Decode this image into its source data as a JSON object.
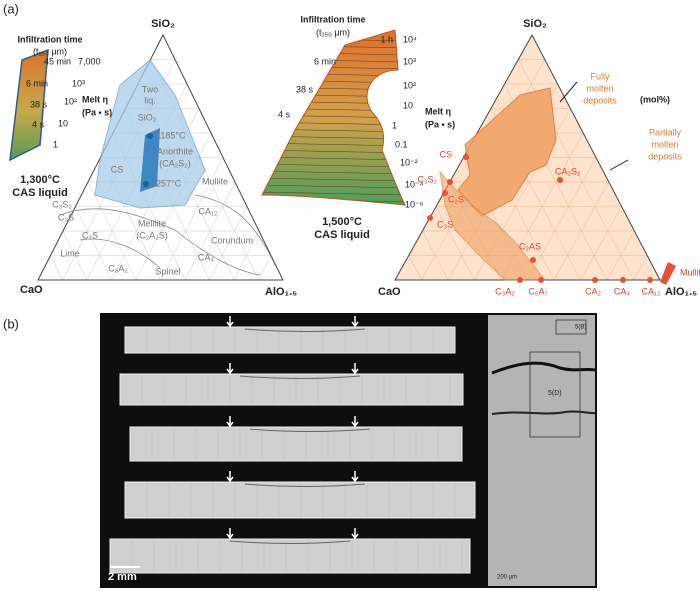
{
  "panel_a": {
    "label": "(a)",
    "left_diagram": {
      "apex": "SiO₂",
      "left_corner": "CaO",
      "right_corner": "AlO₁.₅",
      "inset": {
        "title": "Infiltration time",
        "subtitle": "(t₁₅₀ μm)",
        "times": [
          "45 min",
          "6 min",
          "38 s",
          "4 s"
        ],
        "viscosities": [
          "7,000",
          "10³",
          "10²",
          "10",
          "1"
        ],
        "viscosity_label": "Melt η",
        "viscosity_unit": "(Pa • s)",
        "temperature": "1,300°C",
        "liquid": "CAS liquid"
      },
      "phases": [
        "Two",
        "liq.",
        "SiO₂",
        "1185°C",
        "Anorthite",
        "(CA₂S₂)",
        "CS",
        "1257°C",
        "Mullite",
        "C₃S₂",
        "C₃S",
        "C₂S",
        "Melilite",
        "(C₂A₂S)",
        "CA₁₂",
        "Corundum",
        "CA₄",
        "Lime",
        "C₃A₂",
        "Spinel"
      ]
    },
    "middle_inset": {
      "title": "Infiltration time",
      "subtitle": "(t₁₅₀ μm)",
      "times": [
        "1 h",
        "6 min",
        "38 s",
        "4 s"
      ],
      "viscosities": [
        "10⁴",
        "10³",
        "10²",
        "10",
        "1",
        "0.1",
        "10⁻²",
        "10⁻⁴",
        "10⁻⁶"
      ],
      "viscosity_label": "Melt η",
      "viscosity_unit": "(Pa • s)",
      "temperature": "1,500°C",
      "liquid": "CAS liquid"
    },
    "right_diagram": {
      "apex": "SiO₂",
      "left_corner": "CaO",
      "right_corner": "AlO₁.₅",
      "unit": "(mol%)",
      "fully_molten": [
        "Fully",
        "molten",
        "deposits"
      ],
      "partially_molten": [
        "Partially",
        "molten",
        "deposits"
      ],
      "phases": [
        "CS",
        "C₃S₂",
        "C₂S",
        "C₃S",
        "C₂AS",
        "CA₂S₂",
        "Mullite",
        "C₃A₂",
        "C₆A₇",
        "CA₂",
        "CA₄",
        "CA₁₂"
      ]
    }
  },
  "panel_b": {
    "label": "(b)",
    "scale_bar": "2 mm",
    "micrograph_labels": [
      "5(B)",
      "5(D)",
      "200 μm"
    ]
  }
}
